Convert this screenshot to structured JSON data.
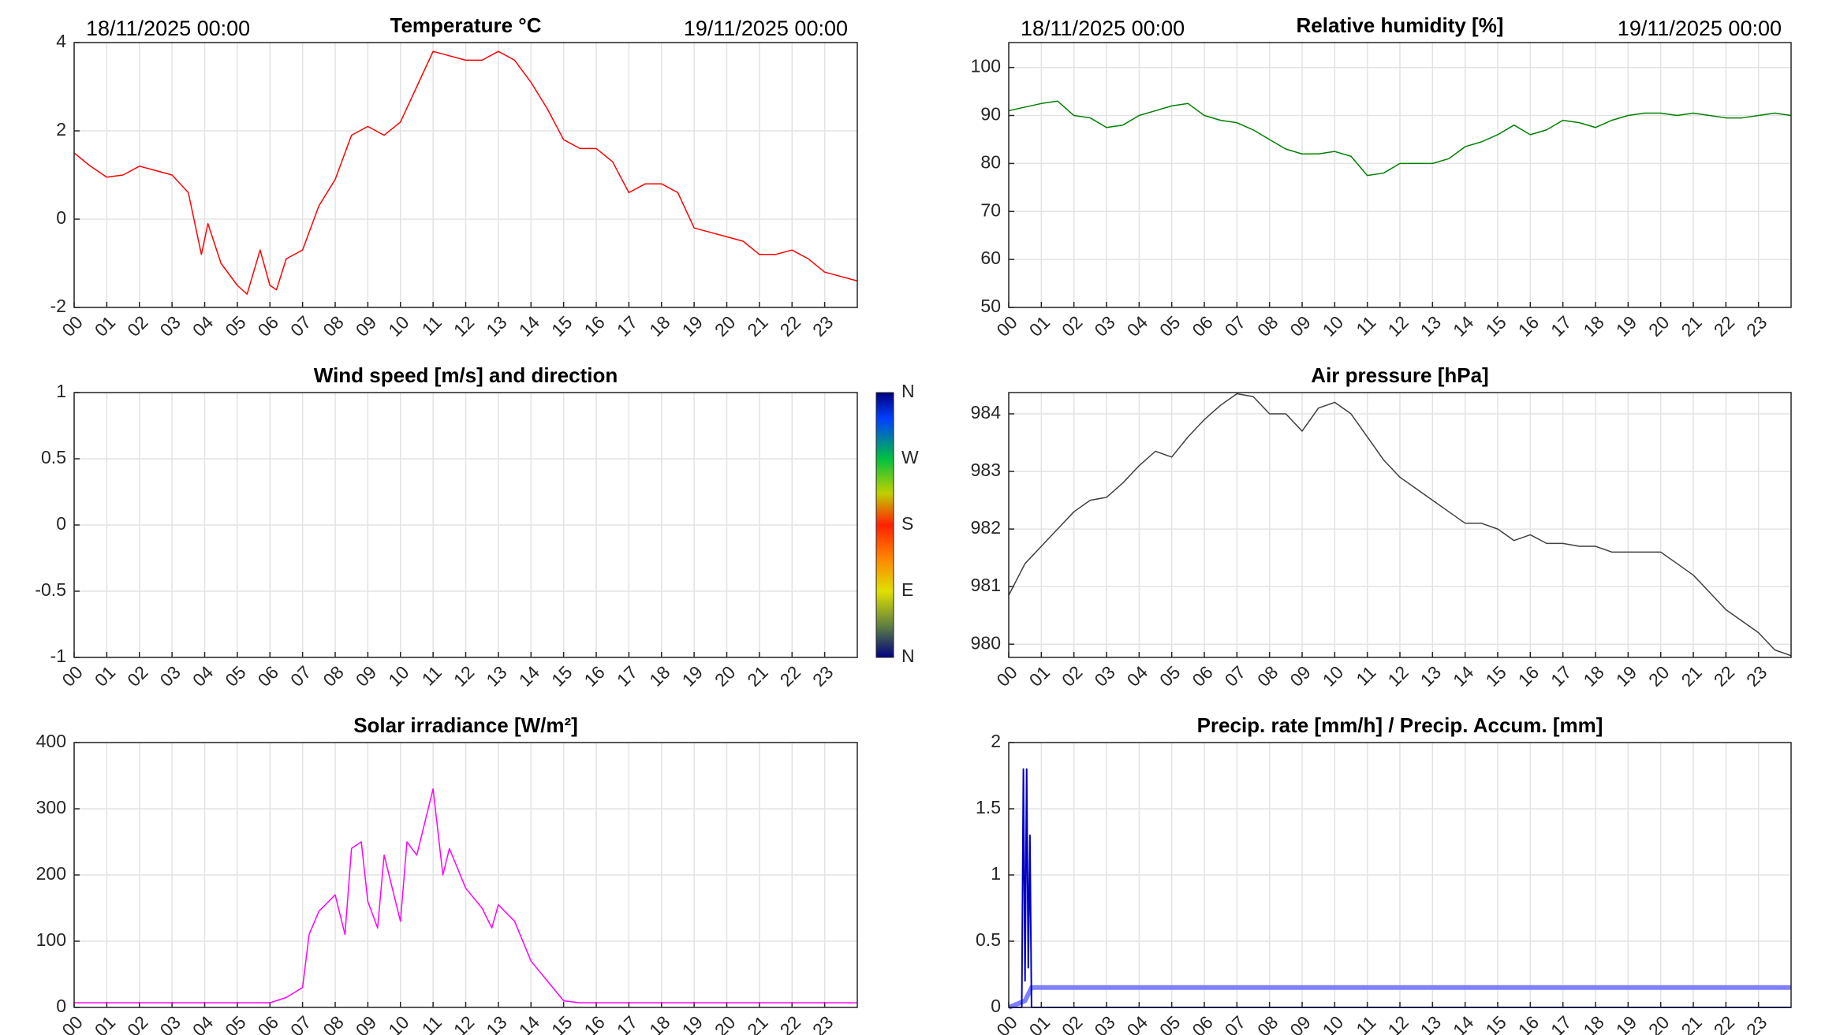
{
  "chart_data": [
    {
      "type": "line",
      "title": "Temperature °C",
      "date_start": "18/11/2025 00:00",
      "date_end": "19/11/2025 00:00",
      "xlim": [
        0,
        24
      ],
      "xticks": [
        {
          "value": 0,
          "label": "00"
        },
        {
          "value": 1,
          "label": "01"
        },
        {
          "value": 2,
          "label": "02"
        },
        {
          "value": 3,
          "label": "03"
        },
        {
          "value": 4,
          "label": "04"
        },
        {
          "value": 5,
          "label": "05"
        },
        {
          "value": 6,
          "label": "06"
        },
        {
          "value": 7,
          "label": "07"
        },
        {
          "value": 8,
          "label": "08"
        },
        {
          "value": 9,
          "label": "09"
        },
        {
          "value": 10,
          "label": "10"
        },
        {
          "value": 11,
          "label": "11"
        },
        {
          "value": 12,
          "label": "12"
        },
        {
          "value": 13,
          "label": "13"
        },
        {
          "value": 14,
          "label": "14"
        },
        {
          "value": 15,
          "label": "15"
        },
        {
          "value": 16,
          "label": "16"
        },
        {
          "value": 17,
          "label": "17"
        },
        {
          "value": 18,
          "label": "18"
        },
        {
          "value": 19,
          "label": "19"
        },
        {
          "value": 20,
          "label": "20"
        },
        {
          "value": 21,
          "label": "21"
        },
        {
          "value": 22,
          "label": "22"
        },
        {
          "value": 23,
          "label": "23"
        }
      ],
      "ylim": [
        -2,
        4
      ],
      "yticks": [
        -2,
        0,
        2,
        4
      ],
      "grid": true,
      "series": [
        {
          "color": "#ff0000",
          "x": [
            0,
            0.5,
            1,
            1.5,
            2,
            2.5,
            3,
            3.5,
            3.9,
            4.1,
            4.5,
            5,
            5.3,
            5.5,
            5.7,
            6,
            6.2,
            6.5,
            7,
            7.5,
            8,
            8.5,
            9,
            9.5,
            10,
            10.5,
            11,
            11.5,
            12,
            12.5,
            13,
            13.5,
            14,
            14.5,
            15,
            15.5,
            16,
            16.5,
            17,
            17.5,
            18,
            18.5,
            19,
            19.5,
            20,
            20.5,
            21,
            21.5,
            22,
            22.5,
            23,
            23.5,
            24
          ],
          "values": [
            1.5,
            1.2,
            0.95,
            1.0,
            1.2,
            1.1,
            1.0,
            0.6,
            -0.8,
            -0.1,
            -1.0,
            -1.5,
            -1.7,
            -1.2,
            -0.7,
            -1.5,
            -1.6,
            -0.9,
            -0.7,
            0.3,
            0.9,
            1.9,
            2.1,
            1.9,
            2.2,
            3.0,
            3.8,
            3.7,
            3.6,
            3.6,
            3.8,
            3.6,
            3.1,
            2.5,
            1.8,
            1.6,
            1.6,
            1.3,
            0.6,
            0.8,
            0.8,
            0.6,
            -0.2,
            -0.3,
            -0.4,
            -0.5,
            -0.8,
            -0.8,
            -0.7,
            -0.9,
            -1.2,
            -1.3,
            -1.4
          ]
        }
      ]
    },
    {
      "type": "line",
      "title": "Relative humidity [%]",
      "date_start": "18/11/2025 00:00",
      "date_end": "19/11/2025 00:00",
      "xlim": [
        0,
        24
      ],
      "xticks": [
        {
          "value": 0,
          "label": "00"
        },
        {
          "value": 1,
          "label": "01"
        },
        {
          "value": 2,
          "label": "02"
        },
        {
          "value": 3,
          "label": "03"
        },
        {
          "value": 4,
          "label": "04"
        },
        {
          "value": 5,
          "label": "05"
        },
        {
          "value": 6,
          "label": "06"
        },
        {
          "value": 7,
          "label": "07"
        },
        {
          "value": 8,
          "label": "08"
        },
        {
          "value": 9,
          "label": "09"
        },
        {
          "value": 10,
          "label": "10"
        },
        {
          "value": 11,
          "label": "11"
        },
        {
          "value": 12,
          "label": "12"
        },
        {
          "value": 13,
          "label": "13"
        },
        {
          "value": 14,
          "label": "14"
        },
        {
          "value": 15,
          "label": "15"
        },
        {
          "value": 16,
          "label": "16"
        },
        {
          "value": 17,
          "label": "17"
        },
        {
          "value": 18,
          "label": "18"
        },
        {
          "value": 19,
          "label": "19"
        },
        {
          "value": 20,
          "label": "20"
        },
        {
          "value": 21,
          "label": "21"
        },
        {
          "value": 22,
          "label": "22"
        },
        {
          "value": 23,
          "label": "23"
        }
      ],
      "ylim": [
        50,
        105.2
      ],
      "yticks": [
        50,
        60,
        70,
        80,
        90,
        100
      ],
      "grid": true,
      "series": [
        {
          "color": "#007f00",
          "x": [
            0,
            1,
            1.5,
            2,
            2.5,
            3,
            3.5,
            4,
            4.5,
            5,
            5.5,
            6,
            6.5,
            7,
            7.5,
            8,
            8.5,
            9,
            9.5,
            10,
            10.5,
            11,
            11.5,
            12,
            12.5,
            13,
            13.5,
            14,
            14.5,
            15,
            15.5,
            16,
            16.5,
            17,
            17.5,
            18,
            18.5,
            19,
            19.5,
            20,
            20.5,
            21,
            21.5,
            22,
            22.5,
            23,
            23.5,
            24
          ],
          "values": [
            91,
            92.5,
            93,
            90,
            89.5,
            87.5,
            88,
            90,
            91,
            92,
            92.5,
            90,
            89,
            88.5,
            87,
            85,
            83,
            82,
            82,
            82.5,
            81.5,
            77.5,
            78,
            80,
            80,
            80,
            81,
            83.5,
            84.5,
            86,
            88,
            86,
            87,
            89,
            88.5,
            87.5,
            89,
            90,
            90.5,
            90.5,
            90,
            90.5,
            90,
            89.5,
            89.5,
            90,
            90.5,
            90
          ]
        }
      ]
    },
    {
      "type": "line",
      "title": "Wind speed [m/s] and direction",
      "xlim": [
        0,
        24
      ],
      "xticks": [
        {
          "value": 0,
          "label": "00"
        },
        {
          "value": 1,
          "label": "01"
        },
        {
          "value": 2,
          "label": "02"
        },
        {
          "value": 3,
          "label": "03"
        },
        {
          "value": 4,
          "label": "04"
        },
        {
          "value": 5,
          "label": "05"
        },
        {
          "value": 6,
          "label": "06"
        },
        {
          "value": 7,
          "label": "07"
        },
        {
          "value": 8,
          "label": "08"
        },
        {
          "value": 9,
          "label": "09"
        },
        {
          "value": 10,
          "label": "10"
        },
        {
          "value": 11,
          "label": "11"
        },
        {
          "value": 12,
          "label": "12"
        },
        {
          "value": 13,
          "label": "13"
        },
        {
          "value": 14,
          "label": "14"
        },
        {
          "value": 15,
          "label": "15"
        },
        {
          "value": 16,
          "label": "16"
        },
        {
          "value": 17,
          "label": "17"
        },
        {
          "value": 18,
          "label": "18"
        },
        {
          "value": 19,
          "label": "19"
        },
        {
          "value": 20,
          "label": "20"
        },
        {
          "value": 21,
          "label": "21"
        },
        {
          "value": 22,
          "label": "22"
        },
        {
          "value": 23,
          "label": "23"
        }
      ],
      "ylim": [
        -1,
        1
      ],
      "yticks": [
        -1,
        -0.5,
        0,
        0.5,
        1
      ],
      "grid": true,
      "colorbar_labels": [
        "N",
        "W",
        "S",
        "E",
        "N"
      ],
      "series": []
    },
    {
      "type": "line",
      "title": "Air pressure [hPa]",
      "xlim": [
        0,
        24
      ],
      "xticks": [
        {
          "value": 0,
          "label": "00"
        },
        {
          "value": 1,
          "label": "01"
        },
        {
          "value": 2,
          "label": "02"
        },
        {
          "value": 3,
          "label": "03"
        },
        {
          "value": 4,
          "label": "04"
        },
        {
          "value": 5,
          "label": "05"
        },
        {
          "value": 6,
          "label": "06"
        },
        {
          "value": 7,
          "label": "07"
        },
        {
          "value": 8,
          "label": "08"
        },
        {
          "value": 9,
          "label": "09"
        },
        {
          "value": 10,
          "label": "10"
        },
        {
          "value": 11,
          "label": "11"
        },
        {
          "value": 12,
          "label": "12"
        },
        {
          "value": 13,
          "label": "13"
        },
        {
          "value": 14,
          "label": "14"
        },
        {
          "value": 15,
          "label": "15"
        },
        {
          "value": 16,
          "label": "16"
        },
        {
          "value": 17,
          "label": "17"
        },
        {
          "value": 18,
          "label": "18"
        },
        {
          "value": 19,
          "label": "19"
        },
        {
          "value": 20,
          "label": "20"
        },
        {
          "value": 21,
          "label": "21"
        },
        {
          "value": 22,
          "label": "22"
        },
        {
          "value": 23,
          "label": "23"
        }
      ],
      "ylim": [
        979.77,
        984.37
      ],
      "yticks": [
        980,
        981,
        982,
        983,
        984
      ],
      "grid": true,
      "series": [
        {
          "color": "#404040",
          "x": [
            0,
            0.5,
            1,
            1.5,
            2,
            2.5,
            3,
            3.5,
            4,
            4.5,
            5,
            5.5,
            6,
            6.5,
            7,
            7.5,
            8,
            8.5,
            9,
            9.5,
            10,
            10.5,
            11,
            11.5,
            12,
            12.5,
            13,
            13.5,
            14,
            14.5,
            15,
            15.5,
            16,
            16.5,
            17,
            17.5,
            18,
            18.5,
            19,
            19.5,
            20,
            20.5,
            21,
            21.5,
            22,
            22.5,
            23,
            23.5,
            24
          ],
          "values": [
            980.85,
            981.4,
            981.7,
            982.0,
            982.3,
            982.5,
            982.55,
            982.8,
            983.1,
            983.35,
            983.25,
            983.6,
            983.9,
            984.15,
            984.35,
            984.3,
            984.0,
            984.0,
            983.7,
            984.1,
            984.2,
            984.0,
            983.6,
            983.2,
            982.9,
            982.7,
            982.5,
            982.3,
            982.1,
            982.1,
            982.0,
            981.8,
            981.9,
            981.75,
            981.75,
            981.7,
            981.7,
            981.6,
            981.6,
            981.6,
            981.6,
            981.4,
            981.2,
            980.9,
            980.6,
            980.4,
            980.2,
            979.9,
            979.8
          ]
        }
      ]
    },
    {
      "type": "line",
      "title": "Solar irradiance [W/m²]",
      "xlim": [
        0,
        24
      ],
      "xticks": [
        {
          "value": 0,
          "label": "00"
        },
        {
          "value": 1,
          "label": "01"
        },
        {
          "value": 2,
          "label": "02"
        },
        {
          "value": 3,
          "label": "03"
        },
        {
          "value": 4,
          "label": "04"
        },
        {
          "value": 5,
          "label": "05"
        },
        {
          "value": 6,
          "label": "06"
        },
        {
          "value": 7,
          "label": "07"
        },
        {
          "value": 8,
          "label": "08"
        },
        {
          "value": 9,
          "label": "09"
        },
        {
          "value": 10,
          "label": "10"
        },
        {
          "value": 11,
          "label": "11"
        },
        {
          "value": 12,
          "label": "12"
        },
        {
          "value": 13,
          "label": "13"
        },
        {
          "value": 14,
          "label": "14"
        },
        {
          "value": 15,
          "label": "15"
        },
        {
          "value": 16,
          "label": "16"
        },
        {
          "value": 17,
          "label": "17"
        },
        {
          "value": 18,
          "label": "18"
        },
        {
          "value": 19,
          "label": "19"
        },
        {
          "value": 20,
          "label": "20"
        },
        {
          "value": 21,
          "label": "21"
        },
        {
          "value": 22,
          "label": "22"
        },
        {
          "value": 23,
          "label": "23"
        }
      ],
      "ylim": [
        0,
        400
      ],
      "yticks": [
        0,
        100,
        200,
        300,
        400
      ],
      "grid": true,
      "series": [
        {
          "color": "#ff00ff",
          "x": [
            0,
            6,
            6.5,
            7,
            7.2,
            7.5,
            8,
            8.3,
            8.5,
            8.8,
            9,
            9.3,
            9.5,
            10,
            10.2,
            10.5,
            11,
            11.3,
            11.5,
            12,
            12.5,
            12.8,
            13,
            13.5,
            14,
            14.5,
            15,
            15.5,
            24
          ],
          "values": [
            7,
            7,
            15,
            30,
            110,
            145,
            170,
            110,
            240,
            250,
            160,
            120,
            230,
            130,
            250,
            230,
            330,
            200,
            240,
            180,
            150,
            120,
            155,
            130,
            70,
            40,
            10,
            7,
            7
          ]
        }
      ]
    },
    {
      "type": "line",
      "title": "Precip. rate [mm/h] / Precip. Accum. [mm]",
      "xlim": [
        0,
        24
      ],
      "xticks": [
        {
          "value": 0,
          "label": "00"
        },
        {
          "value": 1,
          "label": "01"
        },
        {
          "value": 2,
          "label": "02"
        },
        {
          "value": 3,
          "label": "03"
        },
        {
          "value": 4,
          "label": "04"
        },
        {
          "value": 5,
          "label": "05"
        },
        {
          "value": 6,
          "label": "06"
        },
        {
          "value": 7,
          "label": "07"
        },
        {
          "value": 8,
          "label": "08"
        },
        {
          "value": 9,
          "label": "09"
        },
        {
          "value": 10,
          "label": "10"
        },
        {
          "value": 11,
          "label": "11"
        },
        {
          "value": 12,
          "label": "12"
        },
        {
          "value": 13,
          "label": "13"
        },
        {
          "value": 14,
          "label": "14"
        },
        {
          "value": 15,
          "label": "15"
        },
        {
          "value": 16,
          "label": "16"
        },
        {
          "value": 17,
          "label": "17"
        },
        {
          "value": 18,
          "label": "18"
        },
        {
          "value": 19,
          "label": "19"
        },
        {
          "value": 20,
          "label": "20"
        },
        {
          "value": 21,
          "label": "21"
        },
        {
          "value": 22,
          "label": "22"
        },
        {
          "value": 23,
          "label": "23"
        }
      ],
      "ylim": [
        0,
        2
      ],
      "yticks": [
        0,
        0.5,
        1,
        1.5,
        2
      ],
      "grid": true,
      "series": [
        {
          "color": "#8080ff",
          "line_width": 6,
          "x": [
            0,
            0.5,
            0.7,
            24
          ],
          "values": [
            0,
            0.05,
            0.15,
            0.15
          ]
        },
        {
          "color": "#0000c0",
          "line_width": 2,
          "x": [
            0,
            0.4,
            0.45,
            0.5,
            0.55,
            0.6,
            0.65,
            0.7,
            24
          ],
          "values": [
            0,
            0,
            1.8,
            0.2,
            1.8,
            0.3,
            1.3,
            0,
            0
          ]
        }
      ]
    }
  ]
}
